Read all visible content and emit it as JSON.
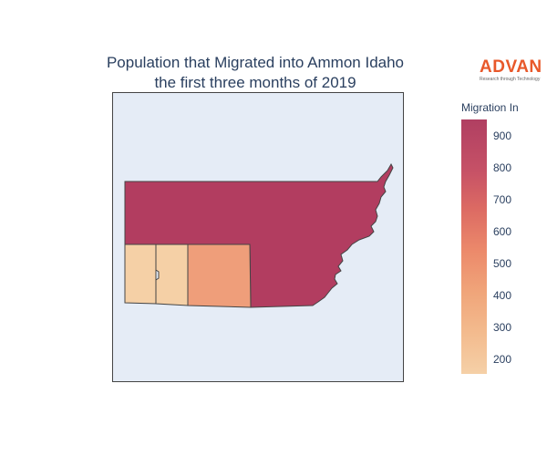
{
  "title": {
    "line1": "Population that Migrated into Ammon Idaho",
    "line2": "the first three months of 2019"
  },
  "logo": {
    "word": "ADVAN",
    "tagline": "Research through Technology",
    "color": "#e8582a"
  },
  "colorbar": {
    "title": "Migration In",
    "ticks": [
      "900",
      "800",
      "700",
      "600",
      "500",
      "400",
      "300",
      "200"
    ],
    "tick_values": [
      900,
      800,
      700,
      600,
      500,
      400,
      300,
      200
    ],
    "min": 155,
    "max": 950,
    "colorscale": [
      "#f5d0a7",
      "#f3bb8e",
      "#f0a57a",
      "#ec8a6b",
      "#dc6a63",
      "#c65166",
      "#b03f62"
    ]
  },
  "map": {
    "background": "#e5ecf6",
    "regions": [
      {
        "name": "region-north",
        "value": 950,
        "fill": "#b23d60"
      },
      {
        "name": "region-east",
        "value": 950,
        "fill": "#b23d60"
      },
      {
        "name": "region-west-1",
        "value": 160,
        "fill": "#f5d0a6"
      },
      {
        "name": "region-west-2",
        "value": 170,
        "fill": "#f5d0a6"
      },
      {
        "name": "region-middle",
        "value": 480,
        "fill": "#ef9e7a"
      }
    ]
  }
}
